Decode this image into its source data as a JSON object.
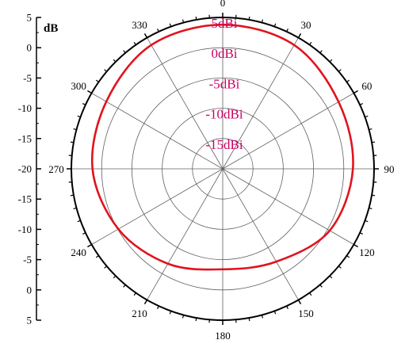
{
  "chart_data": {
    "type": "polar-line",
    "unit_label": "dB",
    "radial_axis": {
      "min": -20,
      "max": 5,
      "rings": [
        5,
        0,
        -5,
        -10,
        -15
      ],
      "ring_labels": [
        "5dBi",
        "0dBi",
        "-5dBi",
        "-10dBi",
        "-15dBi"
      ],
      "left_ticks": [
        "5",
        "0",
        "-5",
        "-10",
        "-15",
        "-20",
        "-15",
        "-10",
        "-5",
        "0",
        "5"
      ]
    },
    "angular_axis": {
      "direction": "clockwise",
      "zero": "top",
      "labels": [
        "0",
        "30",
        "60",
        "90",
        "120",
        "150",
        "180",
        "210",
        "240",
        "270",
        "300",
        "330"
      ]
    },
    "series": [
      {
        "color": "#e0141e",
        "angles": [
          0,
          30,
          60,
          90,
          120,
          150,
          180,
          210,
          240,
          270,
          300,
          330,
          360
        ],
        "values": [
          3.8,
          3.6,
          2.1,
          1.5,
          0.4,
          -2.3,
          -3.4,
          -1.9,
          -0.1,
          1.5,
          2.2,
          3.6,
          3.8
        ]
      }
    ],
    "grid": true
  }
}
